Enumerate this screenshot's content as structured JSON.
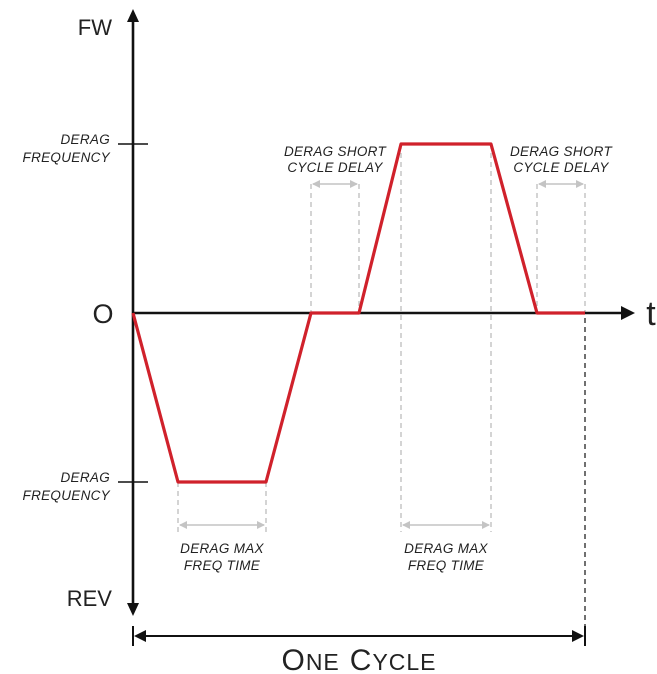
{
  "axes": {
    "y_top": "FW",
    "y_bottom": "REV",
    "origin": "O",
    "x_label": "t"
  },
  "levels": {
    "upper": [
      "DERAG",
      "FREQUENCY"
    ],
    "lower": [
      "DERAG",
      "FREQUENCY"
    ]
  },
  "annotations": {
    "short_delay_1": [
      "DERAG SHORT",
      "CYCLE DELAY"
    ],
    "short_delay_2": [
      "DERAG SHORT",
      "CYCLE DELAY"
    ],
    "max_freq_time_1": [
      "DERAG MAX",
      "FREQ TIME"
    ],
    "max_freq_time_2": [
      "DERAG MAX",
      "FREQ TIME"
    ]
  },
  "cycle": {
    "label_o": "O",
    "label_ne": "NE",
    "label_c": "C",
    "label_ycle": "YCLE"
  },
  "colors": {
    "waveform": "#d0212b",
    "axis": "#111111",
    "guide": "#bdbdbd",
    "text": "#222222"
  }
}
